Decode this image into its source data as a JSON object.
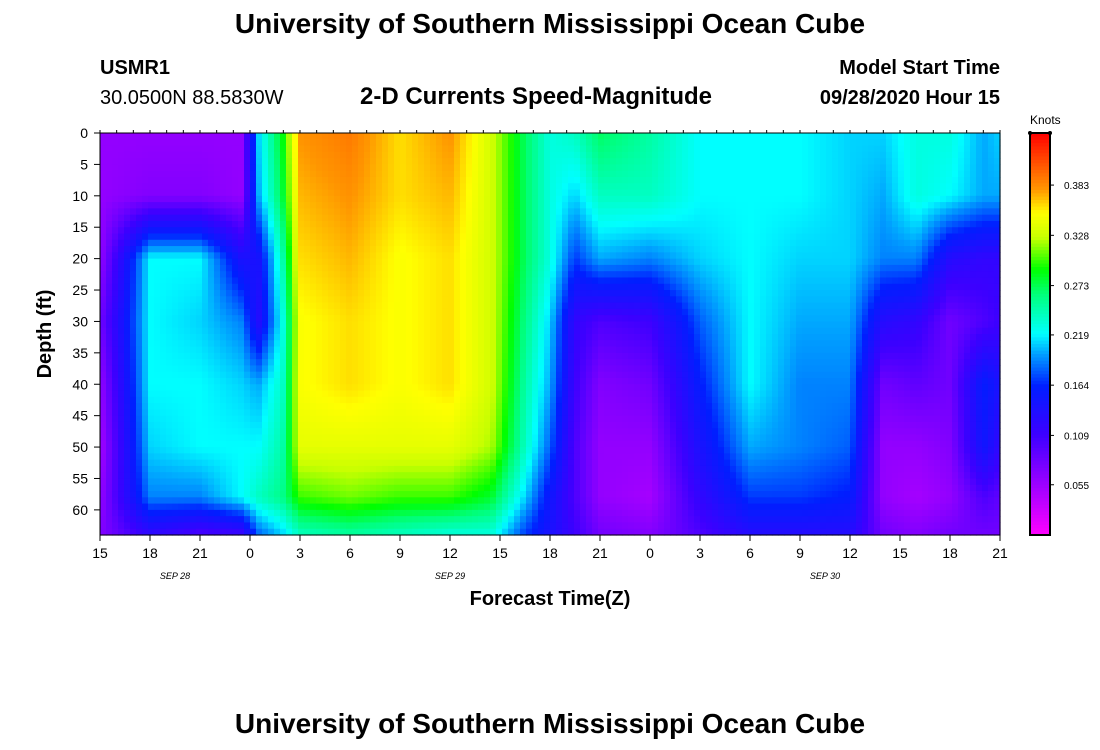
{
  "header": {
    "title": "University of Southern Mississippi Ocean Cube",
    "station": "USMR1",
    "coords": "30.0500N 88.5830W",
    "subtitle": "2-D Currents Speed-Magnitude",
    "start_label": "Model Start Time",
    "start_value": "09/28/2020 Hour 15"
  },
  "footer": {
    "title": "University of Southern Mississippi Ocean Cube"
  },
  "colorbar": {
    "units": "Knots",
    "ticks": [
      "0.055",
      "0.109",
      "0.164",
      "0.219",
      "0.273",
      "0.328",
      "0.383"
    ],
    "min": 0.0,
    "max": 0.44
  },
  "chart_data": {
    "type": "heatmap",
    "title": "2-D Currents Speed-Magnitude",
    "xlabel": "Forecast Time(Z)",
    "ylabel": "Depth (ft)",
    "x_hours": [
      0,
      3,
      6,
      9,
      12,
      15,
      18,
      21,
      24,
      27,
      30,
      33,
      36,
      39,
      42,
      45,
      48,
      51,
      54
    ],
    "x_tick_labels": [
      "15",
      "18",
      "21",
      "0",
      "3",
      "6",
      "9",
      "12",
      "15",
      "18",
      "21",
      "0",
      "3",
      "6",
      "9",
      "12",
      "15",
      "18",
      "21"
    ],
    "date_labels": [
      {
        "text": "SEP 28",
        "hour": 4.5
      },
      {
        "text": "SEP 29",
        "hour": 21
      },
      {
        "text": "SEP 30",
        "hour": 43.5
      }
    ],
    "y_ticks": [
      0,
      5,
      10,
      15,
      20,
      25,
      30,
      35,
      40,
      45,
      50,
      55,
      60
    ],
    "ylim": [
      0,
      64
    ],
    "xlim": [
      0,
      54
    ],
    "depths": [
      0,
      10,
      20,
      30,
      40,
      50,
      58,
      64
    ],
    "times": [
      0,
      3,
      6,
      8.5,
      9.5,
      11,
      12,
      15,
      18,
      21,
      23.5,
      25.5,
      27,
      28.5,
      30,
      33,
      36,
      39,
      42,
      45,
      47,
      49,
      51,
      53,
      54
    ],
    "speed_knots": [
      [
        0.06,
        0.06,
        0.06,
        0.08,
        0.06,
        0.05,
        0.06,
        0.07
      ],
      [
        0.06,
        0.07,
        0.22,
        0.22,
        0.22,
        0.21,
        0.19,
        0.12
      ],
      [
        0.06,
        0.07,
        0.22,
        0.21,
        0.22,
        0.22,
        0.19,
        0.1
      ],
      [
        0.06,
        0.06,
        0.14,
        0.19,
        0.21,
        0.22,
        0.22,
        0.11
      ],
      [
        0.21,
        0.2,
        0.14,
        0.13,
        0.2,
        0.22,
        0.24,
        0.18
      ],
      [
        0.29,
        0.28,
        0.25,
        0.23,
        0.24,
        0.25,
        0.26,
        0.21
      ],
      [
        0.38,
        0.37,
        0.36,
        0.35,
        0.35,
        0.34,
        0.3,
        0.24
      ],
      [
        0.39,
        0.38,
        0.37,
        0.36,
        0.36,
        0.34,
        0.31,
        0.25
      ],
      [
        0.36,
        0.36,
        0.35,
        0.35,
        0.35,
        0.34,
        0.3,
        0.24
      ],
      [
        0.38,
        0.37,
        0.36,
        0.36,
        0.36,
        0.34,
        0.3,
        0.23
      ],
      [
        0.33,
        0.33,
        0.33,
        0.33,
        0.33,
        0.32,
        0.28,
        0.23
      ],
      [
        0.27,
        0.27,
        0.27,
        0.26,
        0.25,
        0.24,
        0.21,
        0.17
      ],
      [
        0.23,
        0.23,
        0.23,
        0.21,
        0.2,
        0.18,
        0.15,
        0.14
      ],
      [
        0.24,
        0.21,
        0.17,
        0.12,
        0.11,
        0.1,
        0.1,
        0.11
      ],
      [
        0.27,
        0.24,
        0.2,
        0.1,
        0.07,
        0.06,
        0.06,
        0.08
      ],
      [
        0.25,
        0.24,
        0.19,
        0.11,
        0.08,
        0.06,
        0.05,
        0.07
      ],
      [
        0.22,
        0.22,
        0.21,
        0.18,
        0.16,
        0.14,
        0.12,
        0.1
      ],
      [
        0.22,
        0.22,
        0.22,
        0.22,
        0.22,
        0.2,
        0.17,
        0.13
      ],
      [
        0.22,
        0.22,
        0.21,
        0.2,
        0.19,
        0.19,
        0.17,
        0.13
      ],
      [
        0.21,
        0.21,
        0.21,
        0.2,
        0.19,
        0.18,
        0.16,
        0.13
      ],
      [
        0.21,
        0.2,
        0.19,
        0.13,
        0.08,
        0.06,
        0.06,
        0.08
      ],
      [
        0.23,
        0.23,
        0.19,
        0.12,
        0.09,
        0.06,
        0.05,
        0.07
      ],
      [
        0.23,
        0.22,
        0.13,
        0.08,
        0.08,
        0.07,
        0.06,
        0.08
      ],
      [
        0.2,
        0.2,
        0.12,
        0.1,
        0.16,
        0.15,
        0.1,
        0.08
      ],
      [
        0.21,
        0.2,
        0.12,
        0.11,
        0.14,
        0.12,
        0.09,
        0.08
      ]
    ]
  }
}
